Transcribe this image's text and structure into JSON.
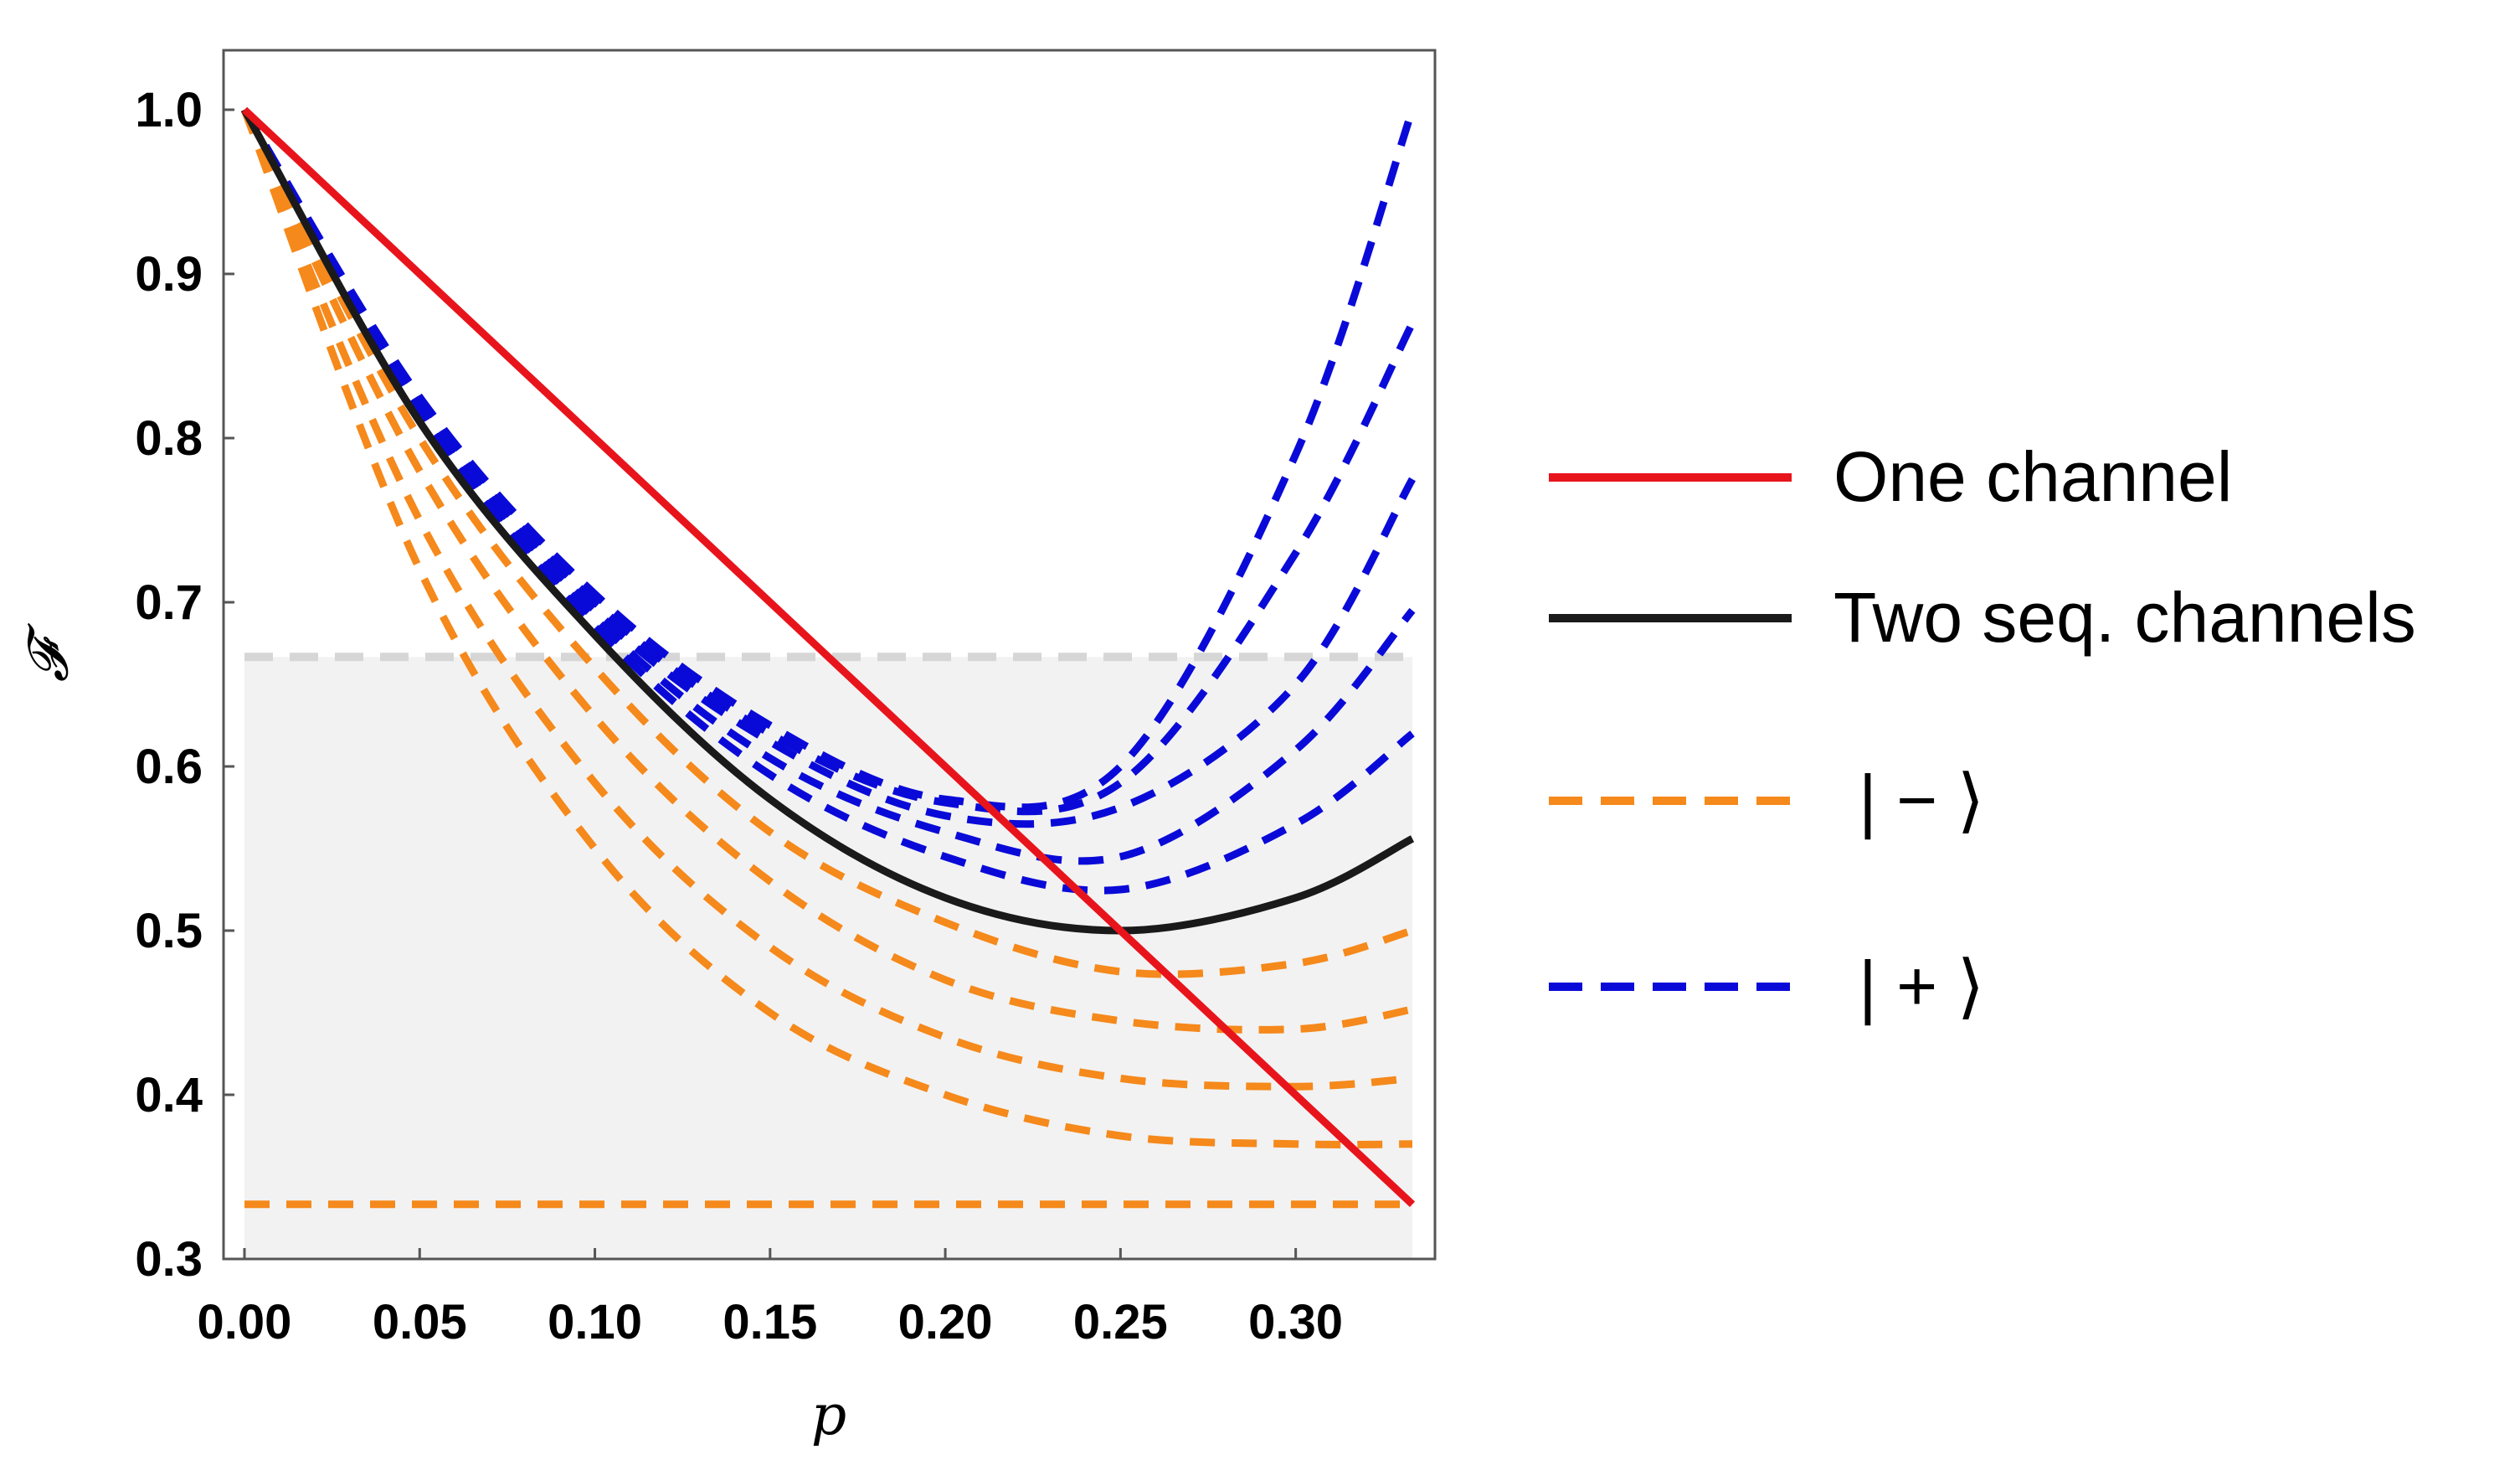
{
  "chart_data": {
    "type": "line",
    "title": "",
    "xlabel": "p",
    "ylabel": "𝓕",
    "xlim": [
      0,
      0.3333
    ],
    "ylim": [
      0.3,
      1.0
    ],
    "x_ticks": [
      "0.00",
      "0.05",
      "0.10",
      "0.15",
      "0.20",
      "0.25",
      "0.30"
    ],
    "y_ticks": [
      "0.3",
      "0.4",
      "0.5",
      "0.6",
      "0.7",
      "0.8",
      "0.9",
      "1.0"
    ],
    "grid": false,
    "shaded_region": {
      "y_from": 0.3,
      "y_to": 0.6667,
      "color": "#f2f2f2"
    },
    "threshold_line": {
      "y": 0.6667,
      "color": "#d6d6d6",
      "style": "dashed"
    },
    "colors": {
      "one_channel": "#e8141c",
      "two_seq": "#1a1a1a",
      "minus": "#f5891b",
      "plus": "#0a0ad8"
    },
    "series": [
      {
        "name": "One channel",
        "style": "solid",
        "x": [
          0,
          0.3333
        ],
        "y": [
          1.0,
          0.3333
        ]
      },
      {
        "name": "Two seq. channels",
        "style": "solid",
        "x": [
          0,
          0.05,
          0.1,
          0.15,
          0.2,
          0.25,
          0.3,
          0.3333
        ],
        "y": [
          1.0,
          0.81,
          0.68,
          0.58,
          0.52,
          0.5,
          0.52,
          0.556
        ]
      },
      {
        "name": "|−⟩",
        "style": "dashed",
        "group": [
          {
            "x": [
              0,
              0.3333
            ],
            "y": [
              0.3333,
              0.3333
            ]
          },
          {
            "x": [
              0,
              0.05,
              0.1,
              0.15,
              0.2,
              0.25,
              0.3,
              0.3333
            ],
            "y": [
              1.0,
              0.72,
              0.55,
              0.45,
              0.4,
              0.375,
              0.37,
              0.37
            ]
          },
          {
            "x": [
              0,
              0.05,
              0.1,
              0.15,
              0.2,
              0.25,
              0.3,
              0.3333
            ],
            "y": [
              1.0,
              0.75,
              0.59,
              0.49,
              0.435,
              0.41,
              0.405,
              0.41
            ]
          },
          {
            "x": [
              0,
              0.05,
              0.1,
              0.15,
              0.2,
              0.25,
              0.3,
              0.3333
            ],
            "y": [
              1.0,
              0.78,
              0.63,
              0.53,
              0.47,
              0.445,
              0.44,
              0.452
            ]
          },
          {
            "x": [
              0,
              0.05,
              0.1,
              0.15,
              0.2,
              0.25,
              0.3,
              0.3333
            ],
            "y": [
              1.0,
              0.8,
              0.66,
              0.56,
              0.505,
              0.475,
              0.48,
              0.5
            ]
          }
        ]
      },
      {
        "name": "|+⟩",
        "style": "dashed",
        "group": [
          {
            "x": [
              0,
              0.05,
              0.1,
              0.15,
              0.2,
              0.25,
              0.3,
              0.3333
            ],
            "y": [
              1.0,
              0.815,
              0.685,
              0.595,
              0.545,
              0.525,
              0.565,
              0.62
            ]
          },
          {
            "x": [
              0,
              0.05,
              0.1,
              0.15,
              0.2,
              0.25,
              0.3,
              0.3333
            ],
            "y": [
              1.0,
              0.818,
              0.69,
              0.605,
              0.56,
              0.545,
              0.61,
              0.695
            ]
          },
          {
            "x": [
              0,
              0.05,
              0.1,
              0.15,
              0.2,
              0.25,
              0.3,
              0.3333
            ],
            "y": [
              1.0,
              0.82,
              0.695,
              0.615,
              0.57,
              0.575,
              0.65,
              0.775
            ]
          },
          {
            "x": [
              0,
              0.05,
              0.1,
              0.15,
              0.2,
              0.25,
              0.3,
              0.3333
            ],
            "y": [
              1.0,
              0.822,
              0.7,
              0.62,
              0.578,
              0.59,
              0.73,
              0.87
            ]
          },
          {
            "x": [
              0,
              0.05,
              0.1,
              0.15,
              0.2,
              0.25,
              0.3,
              0.3333
            ],
            "y": [
              1.0,
              0.825,
              0.705,
              0.625,
              0.58,
              0.6,
              0.79,
              1.0
            ]
          }
        ]
      }
    ],
    "legend": {
      "placement": "right",
      "items": [
        {
          "label": "One channel",
          "series": "One channel"
        },
        {
          "label": "Two seq. channels",
          "series": "Two seq. channels"
        },
        {
          "label": "| − ⟩",
          "series": "|−⟩"
        },
        {
          "label": "| + ⟩",
          "series": "|+⟩"
        }
      ]
    }
  }
}
